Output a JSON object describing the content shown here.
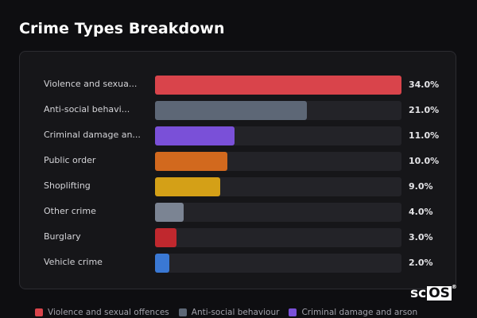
{
  "title": "Crime Types Breakdown",
  "logo": {
    "prefix": "sc",
    "boxed": "OS",
    "mark": "®"
  },
  "chart_data": {
    "type": "bar",
    "orientation": "horizontal",
    "title": "Crime Types Breakdown",
    "value_unit": "%",
    "xlim": [
      0,
      34
    ],
    "categories": [
      "Violence and sexua...",
      "Anti-social behavi...",
      "Criminal damage an...",
      "Public order",
      "Shoplifting",
      "Other crime",
      "Burglary",
      "Vehicle crime"
    ],
    "values": [
      34.0,
      21.0,
      11.0,
      10.0,
      9.0,
      4.0,
      3.0,
      2.0
    ],
    "value_labels": [
      "34.0%",
      "21.0%",
      "11.0%",
      "10.0%",
      "9.0%",
      "4.0%",
      "3.0%",
      "2.0%"
    ],
    "colors": [
      "#d9444b",
      "#5d6776",
      "#7a50d8",
      "#d2691e",
      "#d4a017",
      "#7b8493",
      "#c0282e",
      "#3a78d4"
    ],
    "legend": {
      "placement": "bottom",
      "entries": [
        {
          "label": "Violence and sexual offences",
          "color": "#d9444b"
        },
        {
          "label": "Anti-social behaviour",
          "color": "#5d6776"
        },
        {
          "label": "Criminal damage and arson",
          "color": "#7a50d8"
        }
      ]
    }
  }
}
